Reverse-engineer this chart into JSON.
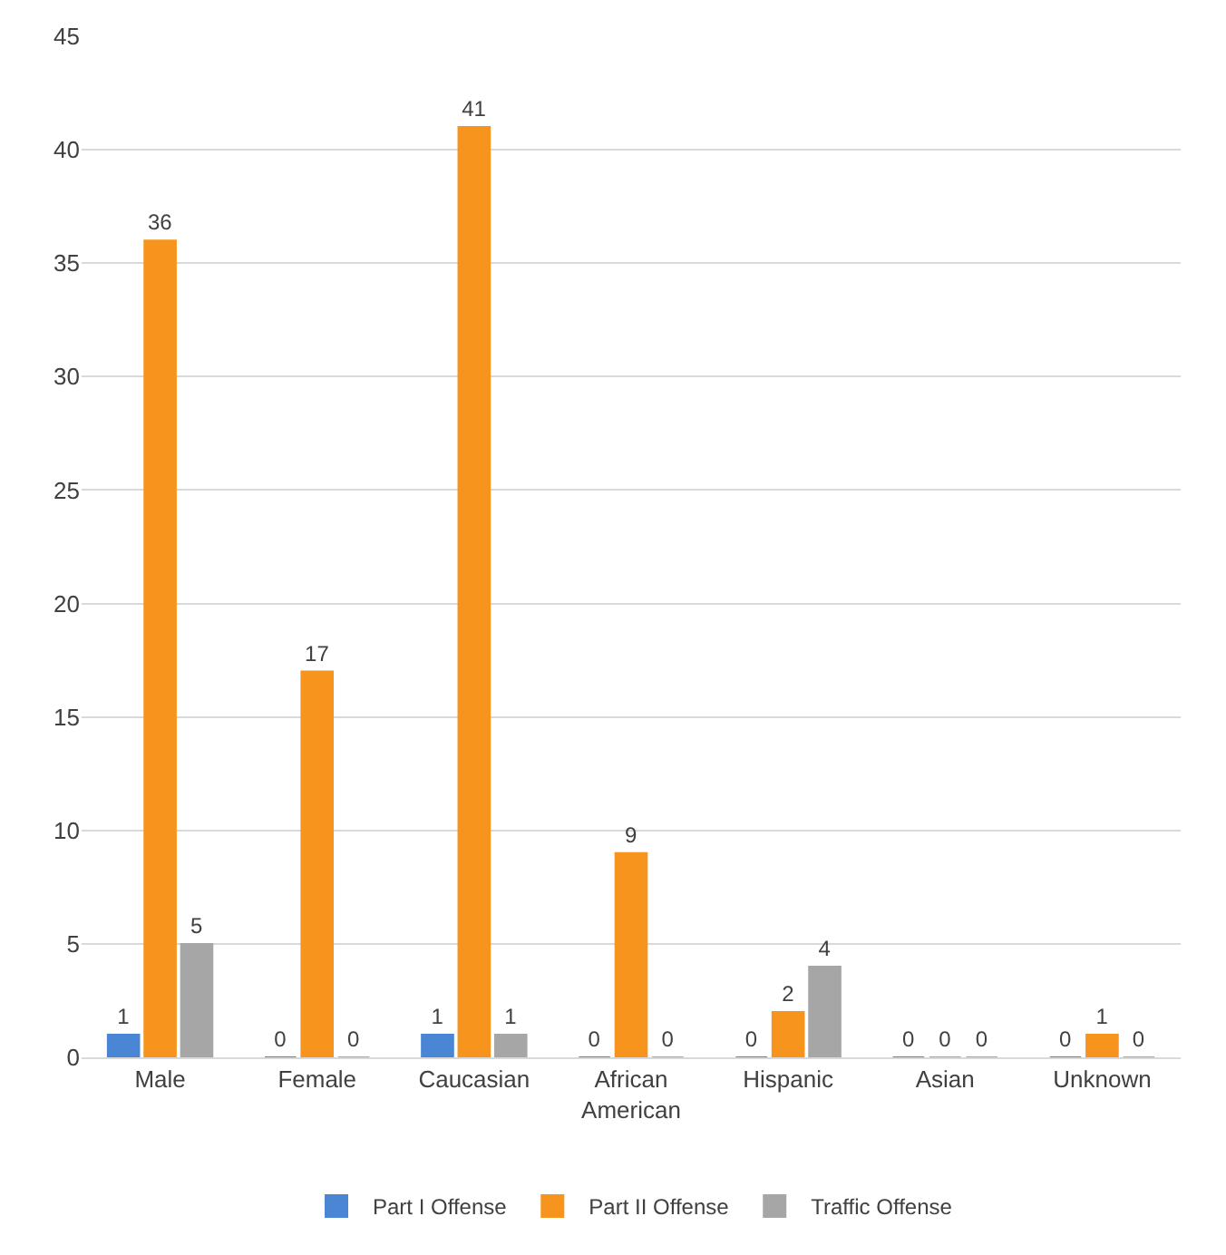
{
  "chart_data": {
    "type": "bar",
    "categories": [
      "Male",
      "Female",
      "Caucasian",
      "African American",
      "Hispanic",
      "Asian",
      "Unknown"
    ],
    "series": [
      {
        "name": "Part I Offense",
        "color": "#4a86d4",
        "values": [
          1,
          0,
          1,
          0,
          0,
          0,
          0
        ]
      },
      {
        "name": "Part II Offense",
        "color": "#f7941d",
        "values": [
          36,
          17,
          41,
          9,
          2,
          0,
          1
        ]
      },
      {
        "name": "Traffic Offense",
        "color": "#a6a6a6",
        "values": [
          5,
          0,
          1,
          0,
          4,
          0,
          0
        ]
      }
    ],
    "ylim": [
      0,
      45
    ],
    "yticks": [
      0,
      5,
      10,
      15,
      20,
      25,
      30,
      35,
      40,
      45
    ],
    "grid": "y",
    "legend": "bottom",
    "data_labels": true
  }
}
